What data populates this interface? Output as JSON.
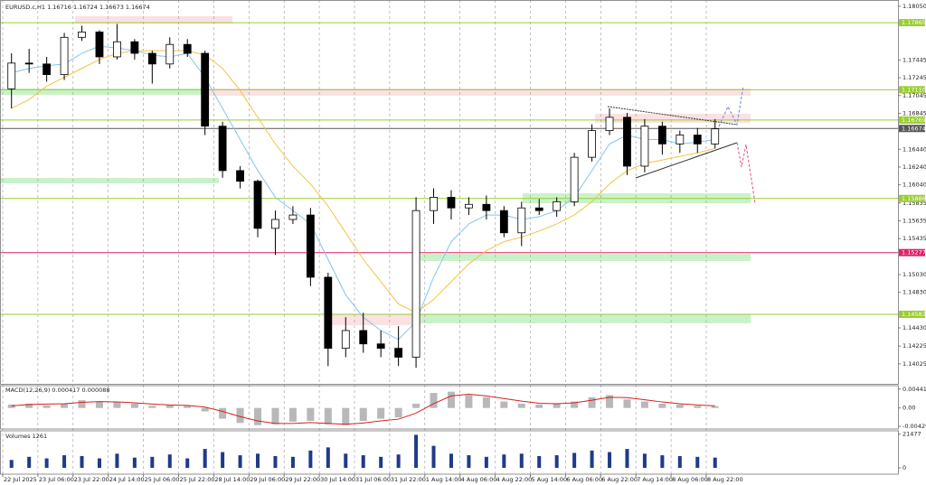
{
  "chart_data": [
    {
      "type": "candlestick",
      "title": "EURUSD.c,H1  1.16716 1.16724 1.16673 1.16674",
      "categories": [
        "22 Jul 2025",
        null,
        "23 Jul 06:00",
        null,
        "23 Jul 22:00",
        null,
        "24 Jul 14:00",
        null,
        "25 Jul 06:00",
        null,
        "25 Jul 22:00",
        null,
        "28 Jul 14:00",
        null,
        "29 Jul 06:00",
        null,
        "29 Jul 22:00",
        null,
        "30 Jul 14:00",
        null,
        "31 Jul 06:00",
        null,
        "31 Jul 22:00",
        null,
        "1 Aug 14:00",
        null,
        "4 Aug 06:00",
        null,
        "4 Aug 22:00",
        null,
        "5 Aug 14:00",
        null,
        "6 Aug 06:00",
        null,
        "6 Aug 22:00",
        null,
        "7 Aug 14:00",
        null,
        "8 Aug 06:00",
        null,
        "8 Aug 22:00"
      ],
      "open": [
        1.1712,
        1.1741,
        1.174,
        1.1728,
        1.177,
        1.1776,
        1.1748,
        1.1765,
        1.1752,
        1.174,
        1.1762,
        1.1752,
        1.167,
        1.162,
        1.1608,
        1.1555,
        1.1565,
        1.157,
        1.15,
        1.142,
        1.144,
        1.1425,
        1.142,
        1.141,
        1.1575,
        1.159,
        1.1578,
        1.1582,
        1.1575,
        1.155,
        1.1578,
        1.1575,
        1.1585,
        1.1635,
        1.1665,
        1.168,
        1.1625,
        1.167,
        1.165,
        1.166,
        1.165
      ],
      "high": [
        1.1752,
        1.1757,
        1.1748,
        1.1775,
        1.1783,
        1.1778,
        1.1785,
        1.1768,
        1.1755,
        1.177,
        1.1768,
        1.1755,
        1.1675,
        1.1625,
        1.161,
        1.1575,
        1.158,
        1.1578,
        1.1505,
        1.1455,
        1.146,
        1.144,
        1.1445,
        1.159,
        1.16,
        1.1598,
        1.159,
        1.1592,
        1.158,
        1.1585,
        1.1588,
        1.159,
        1.164,
        1.1672,
        1.169,
        1.1685,
        1.1678,
        1.1675,
        1.1665,
        1.1668,
        1.1678
      ],
      "low": [
        1.169,
        1.173,
        1.172,
        1.1722,
        1.1766,
        1.174,
        1.1745,
        1.1745,
        1.1718,
        1.1735,
        1.1748,
        1.166,
        1.1612,
        1.16,
        1.1545,
        1.1525,
        1.156,
        1.149,
        1.14,
        1.141,
        1.1415,
        1.141,
        1.14,
        1.1398,
        1.156,
        1.1565,
        1.157,
        1.1565,
        1.1545,
        1.1535,
        1.157,
        1.1568,
        1.158,
        1.163,
        1.166,
        1.1615,
        1.1618,
        1.1638,
        1.164,
        1.164,
        1.1645
      ],
      "close": [
        1.1741,
        1.174,
        1.1728,
        1.177,
        1.1776,
        1.1748,
        1.1765,
        1.1752,
        1.174,
        1.1762,
        1.1752,
        1.167,
        1.162,
        1.1608,
        1.1555,
        1.1565,
        1.157,
        1.15,
        1.142,
        1.144,
        1.1425,
        1.142,
        1.141,
        1.1575,
        1.159,
        1.1578,
        1.1582,
        1.1575,
        1.155,
        1.1578,
        1.1575,
        1.1585,
        1.1635,
        1.1665,
        1.168,
        1.1625,
        1.167,
        1.165,
        1.166,
        1.165,
        1.1667
      ],
      "series": [
        {
          "color": "#87c4e8",
          "values": [
            1.173,
            1.1735,
            1.1738,
            1.174,
            1.1752,
            1.176,
            1.1758,
            1.1755,
            1.175,
            1.1748,
            1.1752,
            1.1725,
            1.169,
            1.1655,
            1.162,
            1.159,
            1.1575,
            1.156,
            1.152,
            1.148,
            1.1455,
            1.144,
            1.143,
            1.145,
            1.15,
            1.154,
            1.156,
            1.157,
            1.157,
            1.1565,
            1.1568,
            1.1575,
            1.159,
            1.162,
            1.165,
            1.166,
            1.1655,
            1.1655,
            1.165,
            1.1652,
            1.1655
          ]
        },
        {
          "color": "#f5c242",
          "values": [
            1.169,
            1.17,
            1.1715,
            1.1725,
            1.1735,
            1.1745,
            1.1752,
            1.1755,
            1.1755,
            1.1755,
            1.1755,
            1.175,
            1.1735,
            1.171,
            1.168,
            1.165,
            1.1625,
            1.1605,
            1.158,
            1.155,
            1.152,
            1.1495,
            1.147,
            1.146,
            1.1475,
            1.1495,
            1.1515,
            1.153,
            1.154,
            1.1545,
            1.1552,
            1.156,
            1.157,
            1.1585,
            1.1605,
            1.162,
            1.1628,
            1.1632,
            1.1636,
            1.164,
            1.1645
          ]
        }
      ],
      "ylim": [
        1.138,
        1.1812
      ],
      "yticks": [
        {
          "value": 1.1805,
          "label": "1.18050"
        },
        {
          "value": 1.17445,
          "label": "1.17445"
        },
        {
          "value": 1.17245,
          "label": "1.17245"
        },
        {
          "value": 1.17045,
          "label": "1.17045"
        },
        {
          "value": 1.16845,
          "label": "1.16845"
        },
        {
          "value": 1.1644,
          "label": "1.16440"
        },
        {
          "value": 1.1624,
          "label": "1.16240"
        },
        {
          "value": 1.1604,
          "label": "1.16040"
        },
        {
          "value": 1.15835,
          "label": "1.15835"
        },
        {
          "value": 1.15635,
          "label": "1.15635"
        },
        {
          "value": 1.15435,
          "label": "1.15435"
        },
        {
          "value": 1.1503,
          "label": "1.15030"
        },
        {
          "value": 1.1483,
          "label": "1.14830"
        },
        {
          "value": 1.1443,
          "label": "1.14430"
        },
        {
          "value": 1.14225,
          "label": "1.14225"
        },
        {
          "value": 1.14025,
          "label": "1.14025"
        }
      ],
      "levels": [
        {
          "value": 1.17865,
          "label": "1.17865",
          "color": "#9acd32"
        },
        {
          "value": 1.1711,
          "label": "1.17110",
          "color": "#9acd32"
        },
        {
          "value": 1.16769,
          "label": "1.16769",
          "color": "#9acd32"
        },
        {
          "value": 1.16674,
          "label": "1.16674",
          "color": "#555555"
        },
        {
          "value": 1.15886,
          "label": "1.15886",
          "color": "#9acd32"
        },
        {
          "value": 1.15277,
          "label": "1.15277",
          "color": "#e0206a"
        },
        {
          "value": 1.14583,
          "label": "1.14583",
          "color": "#9acd32"
        }
      ]
    },
    {
      "type": "macd",
      "title": "MACD(12,26,9) 0.000417 0.000088",
      "values": [
        0.0008,
        0.001,
        0.0006,
        0.001,
        0.0018,
        0.0015,
        0.0014,
        0.001,
        0.0005,
        0.0006,
        0.0005,
        -0.0008,
        -0.0025,
        -0.0035,
        -0.004,
        -0.0038,
        -0.0032,
        -0.003,
        -0.0038,
        -0.004,
        -0.003,
        -0.0025,
        -0.0022,
        0.001,
        0.0035,
        0.0038,
        0.003,
        0.0025,
        0.0015,
        0.001,
        0.0008,
        0.001,
        0.0015,
        0.0025,
        0.003,
        0.002,
        0.0015,
        0.001,
        0.0008,
        0.0005,
        0.0004
      ],
      "color": "#b8b8b8",
      "signal": [
        0.0005,
        0.0008,
        0.0009,
        0.001,
        0.0013,
        0.0015,
        0.0014,
        0.0012,
        0.0009,
        0.0007,
        0.0006,
        0.0002,
        -0.0008,
        -0.002,
        -0.003,
        -0.0036,
        -0.0036,
        -0.0034,
        -0.0036,
        -0.0038,
        -0.0035,
        -0.003,
        -0.0026,
        -0.0012,
        0.001,
        0.0028,
        0.0032,
        0.0028,
        0.0022,
        0.0016,
        0.0011,
        0.001,
        0.0012,
        0.0018,
        0.0025,
        0.0024,
        0.0019,
        0.0014,
        0.001,
        0.0007,
        0.0005
      ],
      "signal_color": "#d62020",
      "ylim": [
        -0.0049,
        0.0052
      ],
      "yticks": [
        0.00441,
        {
          "value": 0,
          "label": "0.00"
        },
        -0.004298
      ]
    },
    {
      "type": "bar",
      "title": "Volumes 1261",
      "values": [
        5000,
        7000,
        6000,
        8000,
        7500,
        6000,
        9000,
        6500,
        7000,
        8500,
        6000,
        12000,
        10000,
        8000,
        9000,
        7500,
        7000,
        11000,
        13000,
        9000,
        8000,
        7000,
        8500,
        21000,
        14000,
        9000,
        8000,
        7000,
        8500,
        9000,
        7500,
        8000,
        9500,
        11000,
        10000,
        12000,
        9000,
        8000,
        7500,
        7000,
        6500
      ],
      "color": "#1f3a8a",
      "ylim": [
        0,
        23200
      ],
      "yticks": [
        21477,
        0
      ]
    }
  ]
}
